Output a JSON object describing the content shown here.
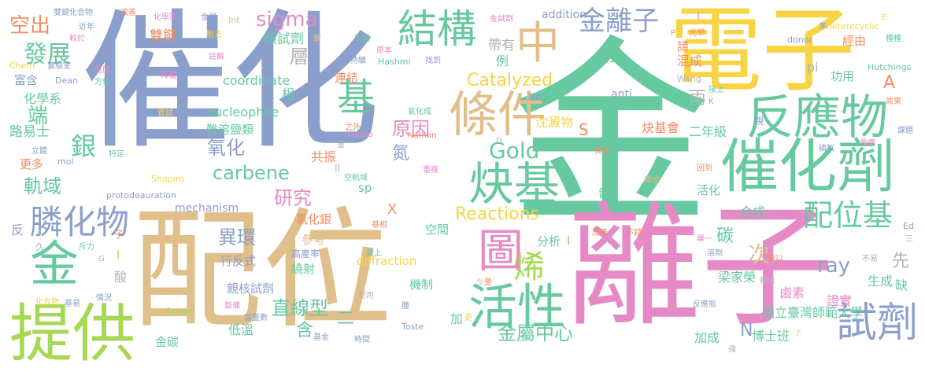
{
  "palette": {
    "blue": "#8b9fcc",
    "tan": "#e0bf8a",
    "green": "#66c9a0",
    "yellow": "#f7d444",
    "pink": "#e58ac6",
    "lime": "#a6d854",
    "orange": "#f28c62",
    "gray": "#b3b3b3",
    "background": "#ffffff"
  },
  "words": [
    {
      "text": "催化",
      "color": "#8b9fcc"
    },
    {
      "text": "金",
      "color": "#66c9a0"
    },
    {
      "text": "電子",
      "color": "#f7d444"
    },
    {
      "text": "離子",
      "color": "#e58ac6"
    },
    {
      "text": "配位",
      "color": "#e0bf8a"
    },
    {
      "text": "催化劑",
      "color": "#66c9a0"
    },
    {
      "text": "反應物",
      "color": "#66c9a0"
    },
    {
      "text": "提供",
      "color": "#a6d854"
    },
    {
      "text": "金",
      "color": "#66c9a0"
    },
    {
      "text": "條件",
      "color": "#e0bf8a"
    },
    {
      "text": "活性",
      "color": "#66c9a0"
    },
    {
      "text": "結構",
      "color": "#66c9a0"
    },
    {
      "text": "炔基",
      "color": "#66c9a0"
    },
    {
      "text": "中",
      "color": "#e0bf8a"
    },
    {
      "text": "試劑",
      "color": "#8b9fcc"
    },
    {
      "text": "金離子",
      "color": "#8b9fcc"
    },
    {
      "text": "膦化物",
      "color": "#8b9fcc"
    },
    {
      "text": "配位基",
      "color": "#66c9a0"
    },
    {
      "text": "圖",
      "color": "#e58ac6"
    },
    {
      "text": "基",
      "color": "#66c9a0"
    },
    {
      "text": "烯",
      "color": "#a6d854"
    },
    {
      "text": "Catalyzed",
      "color": "#f7d444"
    },
    {
      "text": "Reactions",
      "color": "#f7d444"
    },
    {
      "text": "Gold",
      "color": "#66c9a0"
    },
    {
      "text": "sigma",
      "color": "#e58ac6"
    },
    {
      "text": "carbene",
      "color": "#66c9a0"
    },
    {
      "text": "發展",
      "color": "#66c9a0"
    },
    {
      "text": "空出",
      "color": "#f28c62"
    },
    {
      "text": "軌域",
      "color": "#66c9a0"
    },
    {
      "text": "研究",
      "color": "#e58ac6"
    },
    {
      "text": "直線型",
      "color": "#66c9a0"
    },
    {
      "text": "異環",
      "color": "#8b9fcc"
    },
    {
      "text": "氧化",
      "color": "#8b9fcc"
    },
    {
      "text": "原因",
      "color": "#e58ac6"
    },
    {
      "text": "銀",
      "color": "#66c9a0"
    },
    {
      "text": "端",
      "color": "#66c9a0"
    },
    {
      "text": "金屬中心",
      "color": "#66c9a0"
    },
    {
      "text": "兩",
      "color": "#b3b3b3"
    },
    {
      "text": "層",
      "color": "#b3b3b3"
    },
    {
      "text": "雙鍵",
      "color": "#f28c62"
    },
    {
      "text": "核試劑",
      "color": "#66c9a0"
    },
    {
      "text": "帶有",
      "color": "#b3b3b3"
    },
    {
      "text": "碳金",
      "color": "#66c9a0"
    },
    {
      "text": "例",
      "color": "#66c9a0"
    },
    {
      "text": "混成",
      "color": "#f28c62"
    },
    {
      "text": "經由",
      "color": "#f28c62"
    },
    {
      "text": "請",
      "color": "#f28c62"
    },
    {
      "text": "pi",
      "color": "#b3b3b3"
    },
    {
      "text": "功用",
      "color": "#66c9a0"
    },
    {
      "text": "addition",
      "color": "#8b9fcc"
    },
    {
      "text": "coordinate",
      "color": "#66c9a0"
    },
    {
      "text": "nucleophile",
      "color": "#66c9a0"
    },
    {
      "text": "mechanism",
      "color": "#8b9fcc"
    },
    {
      "text": "沈澱物",
      "color": "#f7d444"
    },
    {
      "text": "炔基會",
      "color": "#f28c62"
    },
    {
      "text": "二年級",
      "color": "#66c9a0"
    },
    {
      "text": "氮",
      "color": "#8b9fcc"
    },
    {
      "text": "共振",
      "color": "#f28c62"
    },
    {
      "text": "連結",
      "color": "#f28c62"
    },
    {
      "text": "化學系",
      "color": "#66c9a0"
    },
    {
      "text": "富含",
      "color": "#8b9fcc"
    },
    {
      "text": "路易士",
      "color": "#66c9a0"
    },
    {
      "text": "更多",
      "color": "#f28c62"
    },
    {
      "text": "ray",
      "color": "#8b9fcc"
    },
    {
      "text": "次",
      "color": "#e0bf8a"
    },
    {
      "text": "碳",
      "color": "#66c9a0"
    },
    {
      "text": "先",
      "color": "#b3b3b3"
    },
    {
      "text": "合成",
      "color": "#66c9a0"
    },
    {
      "text": "A",
      "color": "#f28c62"
    },
    {
      "text": "S",
      "color": "#f28c62"
    },
    {
      "text": "N",
      "color": "#8b9fcc"
    },
    {
      "text": "X",
      "color": "#f28c62"
    },
    {
      "text": "氯化銀",
      "color": "#f28c62"
    },
    {
      "text": "參考",
      "color": "#e0bf8a"
    },
    {
      "text": "繞射",
      "color": "#66c9a0"
    },
    {
      "text": "機制",
      "color": "#66c9a0"
    },
    {
      "text": "空間",
      "color": "#66c9a0"
    },
    {
      "text": "分析",
      "color": "#66c9a0"
    },
    {
      "text": "含",
      "color": "#66c9a0"
    },
    {
      "text": "二",
      "color": "#66c9a0"
    },
    {
      "text": "低溫",
      "color": "#66c9a0"
    },
    {
      "text": "行反式",
      "color": "#8b9fcc"
    },
    {
      "text": "親核試劑",
      "color": "#8b9fcc"
    },
    {
      "text": "diffraction",
      "color": "#f7d444"
    },
    {
      "text": "梁家榮",
      "color": "#66c9a0"
    },
    {
      "text": "證實",
      "color": "#e58ac6"
    },
    {
      "text": "生成",
      "color": "#66c9a0"
    },
    {
      "text": "鹵素",
      "color": "#e58ac6"
    },
    {
      "text": "國立臺灣師範大學",
      "color": "#66c9a0"
    },
    {
      "text": "博士班",
      "color": "#66c9a0"
    },
    {
      "text": "加成",
      "color": "#66c9a0"
    },
    {
      "text": "活化",
      "color": "#66c9a0"
    },
    {
      "text": "難溶鹽類",
      "color": "#66c9a0"
    },
    {
      "text": "金碳",
      "color": "#66c9a0"
    },
    {
      "text": "sp",
      "color": "#66c9a0"
    },
    {
      "text": "高產率",
      "color": "#8b9fcc"
    },
    {
      "text": "相",
      "color": "#66c9a0"
    },
    {
      "text": "酸",
      "color": "#b3b3b3"
    },
    {
      "text": "加",
      "color": "#66c9a0"
    },
    {
      "text": "缺",
      "color": "#66c9a0"
    },
    {
      "text": "反",
      "color": "#8b9fcc"
    },
    {
      "text": "anti",
      "color": "#8b9fcc"
    },
    {
      "text": "Hashmi",
      "color": "#66c9a0"
    },
    {
      "text": "donor",
      "color": "#8b9fcc"
    },
    {
      "text": "Hutchings",
      "color": "#66c9a0"
    },
    {
      "text": "Wang",
      "color": "#b3b3b3"
    },
    {
      "text": "heterocyclic",
      "color": "#f7d444"
    },
    {
      "text": "protodeauration",
      "color": "#8b9fcc"
    },
    {
      "text": "Shapiro",
      "color": "#f7d444"
    },
    {
      "text": "Dean",
      "color": "#8b9fcc"
    },
    {
      "text": "Chem",
      "color": "#f7d444"
    },
    {
      "text": "Angew",
      "color": "#a6d854"
    },
    {
      "text": "Toste",
      "color": "#8b9fcc"
    },
    {
      "text": "Nathan",
      "color": "#f28c62"
    },
    {
      "text": "Weibo",
      "color": "#e58ac6"
    },
    {
      "text": "mol",
      "color": "#8b9fcc"
    },
    {
      "text": "Int",
      "color": "#e0bf8a"
    },
    {
      "text": "Ed",
      "color": "#8b9fcc"
    },
    {
      "text": "雙鍵化合物",
      "color": "#8b9fcc"
    },
    {
      "text": "改善",
      "color": "#f28c62"
    },
    {
      "text": "化學家",
      "color": "#e58ac6"
    },
    {
      "text": "金屬",
      "color": "#8b9fcc"
    },
    {
      "text": "金試劑",
      "color": "#e58ac6"
    },
    {
      "text": "較於",
      "color": "#e58ac6"
    },
    {
      "text": "近年",
      "color": "#8b9fcc"
    },
    {
      "text": "實驗室",
      "color": "#8b9fcc"
    },
    {
      "text": "溫度",
      "color": "#e58ac6"
    },
    {
      "text": "方位",
      "color": "#66c9a0"
    },
    {
      "text": "障礙",
      "color": "#e58ac6"
    },
    {
      "text": "註解",
      "color": "#e58ac6"
    },
    {
      "text": "持續",
      "color": "#8b9fcc"
    },
    {
      "text": "對稱",
      "color": "#66c9a0"
    },
    {
      "text": "原本",
      "color": "#e58ac6"
    },
    {
      "text": "找到",
      "color": "#8b9fcc"
    },
    {
      "text": "脫去",
      "color": "#f7d444"
    },
    {
      "text": "鍵",
      "color": "#e0bf8a"
    },
    {
      "text": "苯",
      "color": "#8b9fcc"
    },
    {
      "text": "種種",
      "color": "#66c9a0"
    },
    {
      "text": "光學",
      "color": "#f28c62"
    },
    {
      "text": "接上",
      "color": "#66c9a0"
    },
    {
      "text": "高於",
      "color": "#8b9fcc"
    },
    {
      "text": "氧化成",
      "color": "#66c9a0"
    },
    {
      "text": "管試",
      "color": "#f7d444"
    },
    {
      "text": "立體",
      "color": "#8b9fcc"
    },
    {
      "text": "特定",
      "color": "#66c9a0"
    },
    {
      "text": "空軌域",
      "color": "#66c9a0"
    },
    {
      "text": "重複",
      "color": "#e58ac6"
    },
    {
      "text": "之外",
      "color": "#f28c62"
    },
    {
      "text": "量",
      "color": "#b3b3b3"
    },
    {
      "text": "喪失",
      "color": "#f28c62"
    },
    {
      "text": "原成",
      "color": "#e0bf8a"
    },
    {
      "text": "回到",
      "color": "#f28c62"
    },
    {
      "text": "磷氧",
      "color": "#8b9fcc"
    },
    {
      "text": "零價",
      "color": "#e58ac6"
    },
    {
      "text": "課題",
      "color": "#8b9fcc"
    },
    {
      "text": "效果",
      "color": "#f28c62"
    },
    {
      "text": "親",
      "color": "#8b9fcc"
    },
    {
      "text": "氰",
      "color": "#66c9a0"
    },
    {
      "text": "成果",
      "color": "#f28c62"
    },
    {
      "text": "不錯",
      "color": "#f28c62"
    },
    {
      "text": "單一",
      "color": "#e58ac6"
    },
    {
      "text": "溶劑",
      "color": "#8b9fcc"
    },
    {
      "text": "改以",
      "color": "#f28c62"
    },
    {
      "text": "不易",
      "color": "#b3b3b3"
    },
    {
      "text": "離去",
      "color": "#b3b3b3"
    },
    {
      "text": "反應瓶",
      "color": "#8b9fcc"
    },
    {
      "text": "強",
      "color": "#b3b3b3"
    },
    {
      "text": "少量",
      "color": "#f28c62"
    },
    {
      "text": "利用",
      "color": "#b3b3b3"
    },
    {
      "text": "腫",
      "color": "#8b9fcc"
    },
    {
      "text": "更",
      "color": "#f7d444"
    },
    {
      "text": "當量數",
      "color": "#8b9fcc"
    },
    {
      "text": "製備",
      "color": "#e58ac6"
    },
    {
      "text": "基金",
      "color": "#8b9fcc"
    },
    {
      "text": "時間",
      "color": "#8b9fcc"
    },
    {
      "text": "鍍上",
      "color": "#66c9a0"
    },
    {
      "text": "基相",
      "color": "#f28c62"
    },
    {
      "text": "化合物",
      "color": "#f7d444"
    },
    {
      "text": "情況",
      "color": "#8b9fcc"
    },
    {
      "text": "基易",
      "color": "#8b9fcc"
    },
    {
      "text": "斥力",
      "color": "#66c9a0"
    },
    {
      "text": "久",
      "color": "#b3b3b3"
    },
    {
      "text": "子",
      "color": "#f28c62"
    },
    {
      "text": "G",
      "color": "#b3b3b3"
    },
    {
      "text": "II",
      "color": "#b3b3b3"
    },
    {
      "text": "I",
      "color": "#e58ac6"
    },
    {
      "text": "P",
      "color": "#f28c62"
    },
    {
      "text": "K",
      "color": "#f28c62"
    },
    {
      "text": "E",
      "color": "#f7d444"
    },
    {
      "text": "D",
      "color": "#b3b3b3"
    },
    {
      "text": "F",
      "color": "#f7d444"
    },
    {
      "text": "J",
      "color": "#f28c62"
    },
    {
      "text": "三",
      "color": "#b3b3b3"
    },
    {
      "text": "I",
      "color": "#a6d854"
    },
    {
      "text": "I",
      "color": "#f28c62"
    }
  ]
}
